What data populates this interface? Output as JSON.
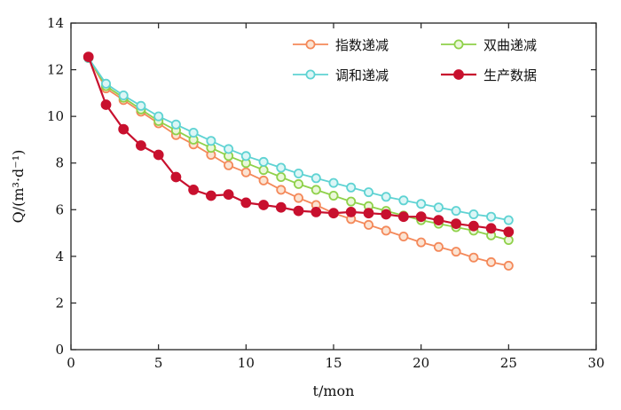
{
  "chart_data": {
    "type": "line",
    "xlabel": "t/mon",
    "ylabel": "Q/(m³·d⁻¹)",
    "xlim": [
      0,
      30
    ],
    "ylim": [
      0,
      14
    ],
    "xticks": [
      0,
      5,
      10,
      15,
      20,
      25,
      30
    ],
    "yticks": [
      0,
      2,
      4,
      6,
      8,
      10,
      12,
      14
    ],
    "grid": false,
    "legend_position": "top-right",
    "x": [
      1,
      2,
      3,
      4,
      5,
      6,
      7,
      8,
      9,
      10,
      11,
      12,
      13,
      14,
      15,
      16,
      17,
      18,
      19,
      20,
      21,
      22,
      23,
      24,
      25
    ],
    "series": [
      {
        "name": "指数递减",
        "color": "#f4895a",
        "fill": "#fbe3d2",
        "values": [
          12.5,
          11.2,
          10.7,
          10.2,
          9.7,
          9.2,
          8.8,
          8.35,
          7.9,
          7.6,
          7.25,
          6.85,
          6.5,
          6.2,
          5.85,
          5.6,
          5.35,
          5.1,
          4.85,
          4.6,
          4.4,
          4.2,
          3.95,
          3.75,
          3.6
        ]
      },
      {
        "name": "双曲递减",
        "color": "#8fd14a",
        "fill": "#eaf7d8",
        "values": [
          12.5,
          11.3,
          10.8,
          10.3,
          9.8,
          9.4,
          9.0,
          8.65,
          8.3,
          8.0,
          7.7,
          7.4,
          7.1,
          6.85,
          6.6,
          6.35,
          6.15,
          5.95,
          5.75,
          5.55,
          5.4,
          5.25,
          5.1,
          4.9,
          4.7
        ]
      },
      {
        "name": "调和递减",
        "color": "#5fd3d3",
        "fill": "#dcf6f6",
        "values": [
          12.5,
          11.4,
          10.9,
          10.45,
          10.0,
          9.65,
          9.3,
          8.95,
          8.6,
          8.3,
          8.05,
          7.8,
          7.55,
          7.35,
          7.15,
          6.95,
          6.75,
          6.55,
          6.4,
          6.25,
          6.1,
          5.95,
          5.8,
          5.7,
          5.55
        ]
      },
      {
        "name": "生产数据",
        "color": "#c8102e",
        "fill": "#c8102e",
        "values": [
          12.55,
          10.5,
          9.45,
          8.75,
          8.35,
          7.4,
          6.85,
          6.6,
          6.65,
          6.3,
          6.2,
          6.1,
          5.95,
          5.9,
          5.85,
          5.9,
          5.85,
          5.8,
          5.7,
          5.7,
          5.55,
          5.4,
          5.3,
          5.2,
          5.05
        ]
      }
    ]
  }
}
